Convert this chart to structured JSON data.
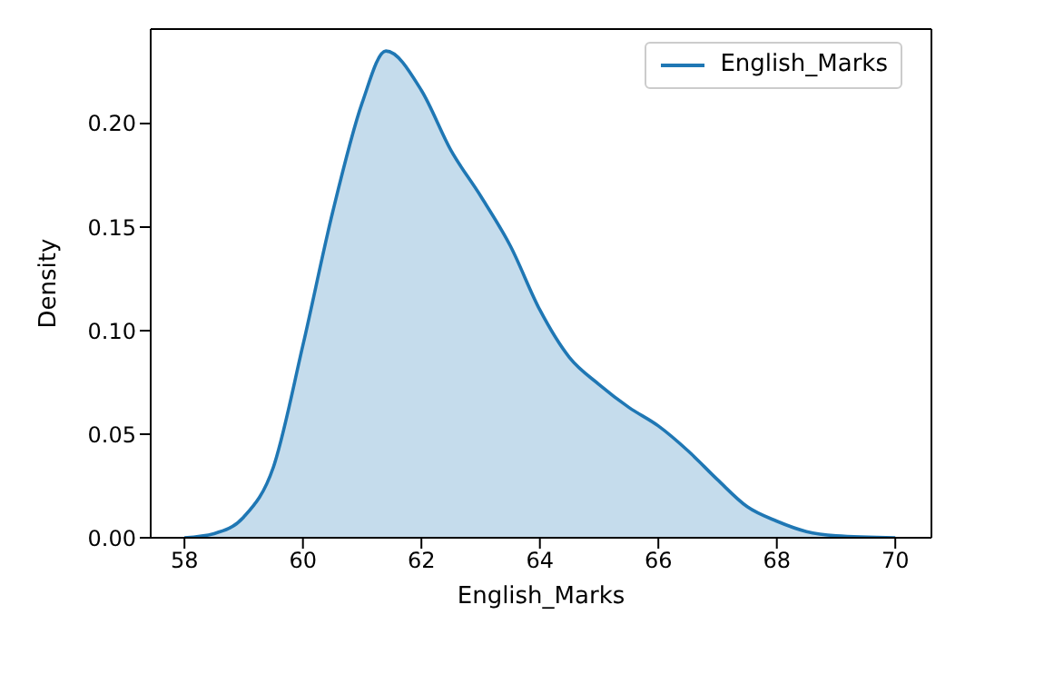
{
  "chart_data": {
    "type": "area",
    "xlabel": "English_Marks",
    "ylabel": "Density",
    "legend": "top right",
    "xlim": [
      57.43,
      70.61
    ],
    "xticks": [
      58,
      60,
      62,
      64,
      66,
      68,
      70
    ],
    "ylim": [
      0,
      0.2456
    ],
    "yticks": [
      {
        "value": 0,
        "label": "0.00"
      },
      0.05,
      {
        "value": 0.1,
        "label": "0.10"
      },
      0.15,
      {
        "value": 0.2,
        "label": "0.20"
      }
    ],
    "x": [
      58,
      58.5,
      59,
      59.5,
      60,
      60.5,
      61,
      61.4,
      62,
      62.5,
      63,
      63.5,
      64,
      64.5,
      65,
      65.5,
      66,
      66.5,
      67,
      67.5,
      68,
      68.5,
      69,
      70
    ],
    "series": [
      {
        "name": "English_Marks",
        "color": "#1f77b4",
        "values": [
          0,
          0.002,
          0.01,
          0.034,
          0.093,
          0.157,
          0.21,
          0.235,
          0.216,
          0.187,
          0.165,
          0.141,
          0.11,
          0.087,
          0.074,
          0.063,
          0.054,
          0.042,
          0.028,
          0.015,
          0.008,
          0.003,
          0.001,
          0
        ]
      }
    ]
  }
}
